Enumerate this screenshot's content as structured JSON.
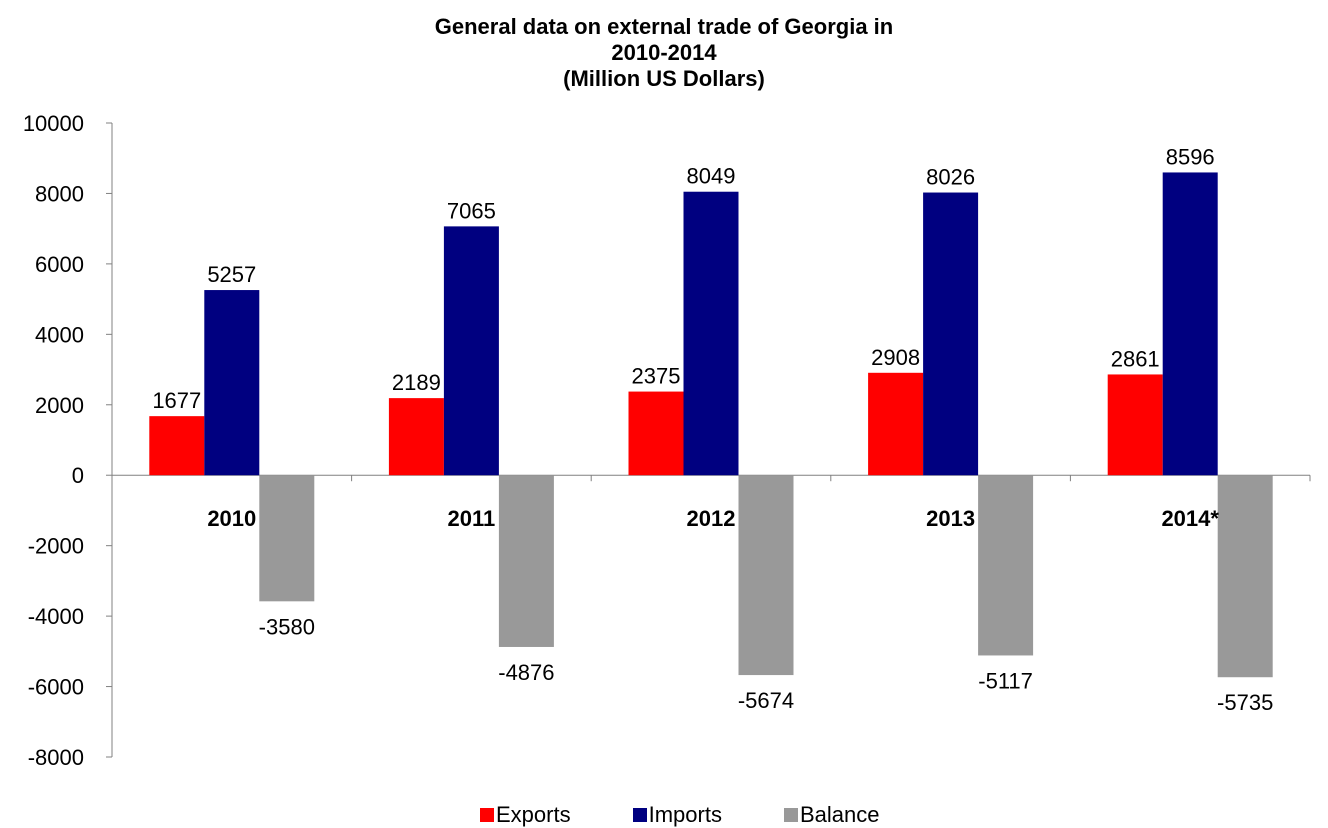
{
  "chart_data": {
    "type": "bar",
    "title": [
      "General data on external trade of Georgia in",
      "2010-2014",
      "(Million US Dollars)"
    ],
    "categories": [
      "2010",
      "2011",
      "2012",
      "2013",
      "2014*"
    ],
    "series": [
      {
        "name": "Exports",
        "color": "#ff0000",
        "values": [
          1677,
          2189,
          2375,
          2908,
          2861
        ]
      },
      {
        "name": "Imports",
        "color": "#000080",
        "values": [
          5257,
          7065,
          8049,
          8026,
          8596
        ]
      },
      {
        "name": "Balance",
        "color": "#999999",
        "values": [
          -3580,
          -4876,
          -5674,
          -5117,
          -5735
        ]
      }
    ],
    "ylim": [
      -8000,
      10000
    ],
    "yticks": [
      "10000",
      "8000",
      "6000",
      "4000",
      "2000",
      "0",
      "-2000",
      "-4000",
      "-6000",
      "-8000"
    ],
    "xlabel": "",
    "ylabel": "",
    "grid": false,
    "legend_position": "bottom"
  }
}
